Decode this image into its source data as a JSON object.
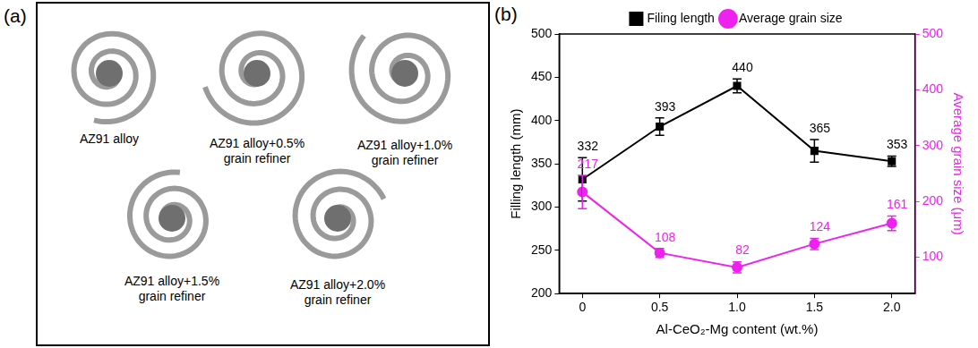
{
  "panel_a": {
    "panel_label": "(a)",
    "captions": [
      "AZ91 alloy",
      "AZ91 alloy+0.5% grain refiner",
      "AZ91 alloy+1.0% grain refiner",
      "AZ91 alloy+1.5% grain refiner",
      "AZ91 alloy+2.0% grain refiner"
    ]
  },
  "chart_data": {
    "type": "line",
    "panel_label": "(b)",
    "x_label": "Al-CeO₂-Mg content (wt.%)",
    "y_label": "Filling length (mm)",
    "y2_label": "Average grain size (μm)",
    "x": [
      0,
      0.5,
      1.0,
      1.5,
      2.0
    ],
    "xlim": [
      -0.15,
      2.15
    ],
    "xticks": [
      0,
      0.5,
      {
        "value": 1,
        "label": "1.0"
      },
      1.5,
      {
        "value": 2,
        "label": "2.0"
      }
    ],
    "ylim": [
      200,
      500
    ],
    "yticks": [
      200,
      250,
      300,
      350,
      400,
      450,
      500
    ],
    "y2lim": [
      35,
      500
    ],
    "y2ticks": [
      100,
      200,
      300,
      400,
      500
    ],
    "grid": false,
    "legend": "top",
    "data_labels": true,
    "series": [
      {
        "name": "Filing length",
        "color": "#000000",
        "marker": "square",
        "line_style": "solid",
        "values": [
          332,
          393,
          440,
          365,
          353
        ],
        "errors": [
          25,
          10,
          8,
          13,
          6
        ]
      },
      {
        "name": "Average grain size",
        "color": "#ee22ee",
        "marker": "circle",
        "line_style": "solid",
        "axis": "y2",
        "values": [
          217,
          108,
          82,
          124,
          161
        ],
        "errors": [
          30,
          8,
          10,
          10,
          13
        ]
      }
    ]
  }
}
